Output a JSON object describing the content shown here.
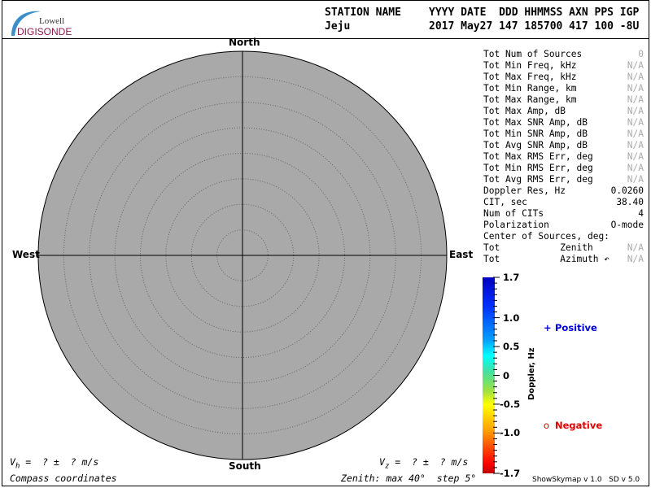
{
  "logo": {
    "line1": "Lowell",
    "line2": "DIGISONDE"
  },
  "header": {
    "labels_left": "STATION NAME",
    "labels_right": "YYYY DATE  DDD HHMMSS AXN PPS IGP",
    "station": "Jeju",
    "values_right": "2017 May27 147 185700 417 100 -8U"
  },
  "compass": {
    "north": "North",
    "south": "South",
    "east": "East",
    "west": "West"
  },
  "skymap": {
    "zenith_max_deg": 40,
    "zenith_step_deg": 5,
    "fill_color": "#a9a9a9"
  },
  "stats": [
    {
      "label": "Tot Num of Sources",
      "value": "0",
      "muted": true
    },
    {
      "label": "Tot Min Freq, kHz",
      "value": "N/A",
      "muted": true
    },
    {
      "label": "Tot Max Freq, kHz",
      "value": "N/A",
      "muted": true
    },
    {
      "label": "Tot Min Range, km",
      "value": "N/A",
      "muted": true
    },
    {
      "label": "Tot Max Range, km",
      "value": "N/A",
      "muted": true
    },
    {
      "label": "Tot Max Amp, dB",
      "value": "N/A",
      "muted": true
    },
    {
      "label": "Tot Max SNR Amp, dB",
      "value": "N/A",
      "muted": true
    },
    {
      "label": "Tot Min SNR Amp, dB",
      "value": "N/A",
      "muted": true
    },
    {
      "label": "Tot Avg SNR Amp, dB",
      "value": "N/A",
      "muted": true
    },
    {
      "label": "Tot Max RMS Err, deg",
      "value": "N/A",
      "muted": true
    },
    {
      "label": "Tot Min RMS Err, deg",
      "value": "N/A",
      "muted": true
    },
    {
      "label": "Tot Avg RMS Err, deg",
      "value": "N/A",
      "muted": true
    },
    {
      "label": "Doppler Res, Hz",
      "value": "0.0260",
      "muted": false
    },
    {
      "label": "CIT, sec",
      "value": "38.40",
      "muted": false
    },
    {
      "label": "Num of CITs",
      "value": "4",
      "muted": false
    },
    {
      "label": "Polarization",
      "value": "O-mode",
      "muted": false
    },
    {
      "label": "Center of Sources, deg:",
      "value": "",
      "muted": false
    },
    {
      "label": "Tot           Zenith",
      "value": "N/A",
      "muted": true
    },
    {
      "label": "Tot           Azimuth ↶",
      "value": "N/A",
      "muted": true
    }
  ],
  "colorbar": {
    "title": "Doppler, Hz",
    "ticks": [
      "1.7",
      "1.0",
      "0.5",
      "0",
      "-0.5",
      "-1.0",
      "-1.7"
    ],
    "min": -1.7,
    "max": 1.7
  },
  "legend": {
    "positive": {
      "symbol": "+",
      "label": "Positive",
      "color": "#0000e0"
    },
    "negative": {
      "symbol": "o",
      "label": "Negative",
      "color": "#e00000"
    }
  },
  "footer": {
    "vh": "V",
    "vh_sub": "h",
    "vh_rest": " =  ? ±  ? m/s",
    "vz": "V",
    "vz_sub": "z",
    "vz_rest": " =  ? ±  ? m/s",
    "coords": "Compass coordinates",
    "zenith": "Zenith: max 40°  step 5°",
    "version": "ShowSkymap v 1.0   SD v 5.0"
  }
}
